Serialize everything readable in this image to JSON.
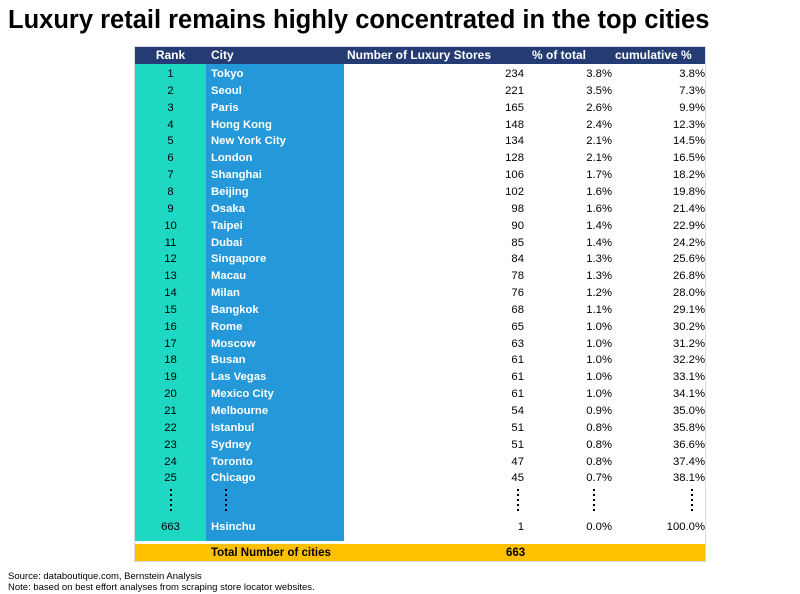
{
  "title": "Luxury retail remains highly concentrated in the top cities",
  "chart_data": {
    "type": "table",
    "columns": [
      "Rank",
      "City",
      "Number of Luxury Stores",
      "% of total",
      "cumulative %"
    ],
    "rows": [
      {
        "rank": "1",
        "city": "Tokyo",
        "stores": "234",
        "pct": "3.8%",
        "cum": "3.8%"
      },
      {
        "rank": "2",
        "city": "Seoul",
        "stores": "221",
        "pct": "3.5%",
        "cum": "7.3%"
      },
      {
        "rank": "3",
        "city": "Paris",
        "stores": "165",
        "pct": "2.6%",
        "cum": "9.9%"
      },
      {
        "rank": "4",
        "city": "Hong Kong",
        "stores": "148",
        "pct": "2.4%",
        "cum": "12.3%"
      },
      {
        "rank": "5",
        "city": "New York City",
        "stores": "134",
        "pct": "2.1%",
        "cum": "14.5%"
      },
      {
        "rank": "6",
        "city": "London",
        "stores": "128",
        "pct": "2.1%",
        "cum": "16.5%"
      },
      {
        "rank": "7",
        "city": "Shanghai",
        "stores": "106",
        "pct": "1.7%",
        "cum": "18.2%"
      },
      {
        "rank": "8",
        "city": "Beijing",
        "stores": "102",
        "pct": "1.6%",
        "cum": "19.8%"
      },
      {
        "rank": "9",
        "city": "Osaka",
        "stores": "98",
        "pct": "1.6%",
        "cum": "21.4%"
      },
      {
        "rank": "10",
        "city": "Taipei",
        "stores": "90",
        "pct": "1.4%",
        "cum": "22.9%"
      },
      {
        "rank": "11",
        "city": "Dubai",
        "stores": "85",
        "pct": "1.4%",
        "cum": "24.2%"
      },
      {
        "rank": "12",
        "city": "Singapore",
        "stores": "84",
        "pct": "1.3%",
        "cum": "25.6%"
      },
      {
        "rank": "13",
        "city": "Macau",
        "stores": "78",
        "pct": "1.3%",
        "cum": "26.8%"
      },
      {
        "rank": "14",
        "city": "Milan",
        "stores": "76",
        "pct": "1.2%",
        "cum": "28.0%"
      },
      {
        "rank": "15",
        "city": "Bangkok",
        "stores": "68",
        "pct": "1.1%",
        "cum": "29.1%"
      },
      {
        "rank": "16",
        "city": "Rome",
        "stores": "65",
        "pct": "1.0%",
        "cum": "30.2%"
      },
      {
        "rank": "17",
        "city": "Moscow",
        "stores": "63",
        "pct": "1.0%",
        "cum": "31.2%"
      },
      {
        "rank": "18",
        "city": "Busan",
        "stores": "61",
        "pct": "1.0%",
        "cum": "32.2%"
      },
      {
        "rank": "19",
        "city": "Las Vegas",
        "stores": "61",
        "pct": "1.0%",
        "cum": "33.1%"
      },
      {
        "rank": "20",
        "city": "Mexico City",
        "stores": "61",
        "pct": "1.0%",
        "cum": "34.1%"
      },
      {
        "rank": "21",
        "city": "Melbourne",
        "stores": "54",
        "pct": "0.9%",
        "cum": "35.0%"
      },
      {
        "rank": "22",
        "city": "Istanbul",
        "stores": "51",
        "pct": "0.8%",
        "cum": "35.8%"
      },
      {
        "rank": "23",
        "city": "Sydney",
        "stores": "51",
        "pct": "0.8%",
        "cum": "36.6%"
      },
      {
        "rank": "24",
        "city": "Toronto",
        "stores": "47",
        "pct": "0.8%",
        "cum": "37.4%"
      },
      {
        "rank": "25",
        "city": "Chicago",
        "stores": "45",
        "pct": "0.7%",
        "cum": "38.1%"
      }
    ],
    "last_row": {
      "rank": "663",
      "city": "Hsinchu",
      "stores": "1",
      "pct": "0.0%",
      "cum": "100.0%"
    },
    "total": {
      "label": "Total Number of cities",
      "value": "663"
    }
  },
  "colors": {
    "header": "#243b73",
    "rank_column": "#1fd8c4",
    "city_column": "#2498d8",
    "total_row": "#ffc000"
  },
  "footer": {
    "source": "Source: databoutique.com, Bernstein Analysis",
    "note": "Note: based on best effort analyses from scraping store locator websites."
  }
}
